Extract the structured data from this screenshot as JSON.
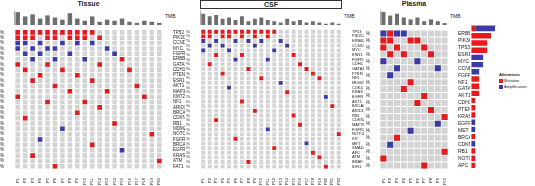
{
  "chart_data": [
    {
      "type": "heatmap",
      "title": "Tissue",
      "categories": [
        "P1",
        "P2",
        "P3",
        "P4",
        "P5",
        "P6",
        "P7",
        "P8",
        "P9",
        "P10",
        "P11",
        "P12",
        "P13",
        "P14",
        "P15",
        "P16",
        "P17",
        "P18",
        "P19",
        "P20"
      ],
      "series": [
        {
          "name": "Mutation",
          "color": "#e41a1c"
        },
        {
          "name": "Amplification",
          "color": "#3b3ba6"
        }
      ],
      "tmb": {
        "type": "bar",
        "label": "TMB",
        "values": [
          12,
          8,
          10,
          6,
          9,
          7,
          5,
          11,
          6,
          4,
          8,
          3,
          5,
          4,
          6,
          3,
          2,
          4,
          3,
          2
        ],
        "ylim": [
          0,
          14
        ],
        "color": "#6e6e6e",
        "tick_labels": false
      },
      "rows": [
        {
          "gene": "TP53",
          "frequency": "55%",
          "Mutation": [
            "P1",
            "P2",
            "P3",
            "P4",
            "P5",
            "P6",
            "P7",
            "P8",
            "P9",
            "P10",
            "P11"
          ]
        },
        {
          "gene": "PIK3CA",
          "frequency": "45%",
          "Mutation": [
            "P1",
            "P2",
            "P3",
            "P5",
            "P6",
            "P8",
            "P9",
            "P10",
            "P12"
          ]
        },
        {
          "gene": "CCND1",
          "frequency": "30%",
          "Amplification": [
            "P1",
            "P2",
            "P4",
            "P7",
            "P9",
            "P11"
          ]
        },
        {
          "gene": "MYC",
          "frequency": "25%",
          "Amplification": [
            "P1",
            "P3",
            "P5",
            "P6",
            "P13"
          ]
        },
        {
          "gene": "FGFR1",
          "frequency": "20%",
          "Amplification": [
            "P2",
            "P4",
            "P8",
            "P14"
          ]
        },
        {
          "gene": "ERBB2",
          "frequency": "20%",
          "Mutation": [
            "P15"
          ],
          "Amplification": [
            "P3",
            "P6",
            "P10"
          ]
        },
        {
          "gene": "GATA3",
          "frequency": "15%",
          "Mutation": [
            "P1",
            "P5",
            "P12"
          ]
        },
        {
          "gene": "CDH1",
          "frequency": "15%",
          "Mutation": [
            "P2",
            "P7",
            "P16"
          ]
        },
        {
          "gene": "PTEN",
          "frequency": "10%",
          "Mutation": [
            "P4",
            "P9"
          ]
        },
        {
          "gene": "ESR1",
          "frequency": "10%",
          "Mutation": [
            "P3",
            "P11"
          ]
        },
        {
          "gene": "AKT1",
          "frequency": "10%",
          "Mutation": [
            "P6",
            "P17"
          ]
        },
        {
          "gene": "MAP3K1",
          "frequency": "10%",
          "Mutation": [
            "P8",
            "P13"
          ]
        },
        {
          "gene": "KMT2C",
          "frequency": "10%",
          "Mutation": [
            "P1",
            "P18"
          ]
        },
        {
          "gene": "NF1",
          "frequency": "10%",
          "Mutation": [
            "P5",
            "P10"
          ]
        },
        {
          "gene": "ARID1A",
          "frequency": "5%",
          "Mutation": [
            "P12"
          ]
        },
        {
          "gene": "BRCA2",
          "frequency": "5%",
          "Mutation": [
            "P9"
          ]
        },
        {
          "gene": "CDKN2A",
          "frequency": "5%",
          "Mutation": [
            "P2"
          ]
        },
        {
          "gene": "RB1",
          "frequency": "5%",
          "Mutation": [
            "P14"
          ]
        },
        {
          "gene": "MDM2",
          "frequency": "5%",
          "Amplification": [
            "P7"
          ]
        },
        {
          "gene": "NOTCH1",
          "frequency": "5%",
          "Mutation": [
            "P19"
          ]
        },
        {
          "gene": "FGFR2",
          "frequency": "5%",
          "Amplification": [
            "P4"
          ]
        },
        {
          "gene": "BRCA1",
          "frequency": "5%",
          "Mutation": [
            "P11"
          ]
        },
        {
          "gene": "EGFR",
          "frequency": "5%",
          "Amplification": [
            "P15"
          ]
        },
        {
          "gene": "KRAS",
          "frequency": "5%",
          "Mutation": [
            "P3"
          ]
        },
        {
          "gene": "ATM",
          "frequency": "5%",
          "Mutation": [
            "P20"
          ]
        },
        {
          "gene": "FAT1",
          "frequency": "5%",
          "Mutation": [
            "P6"
          ]
        }
      ]
    },
    {
      "type": "heatmap",
      "title": "CSF",
      "categories": [
        "P1",
        "P2",
        "P3",
        "P4",
        "P5",
        "P6",
        "P7",
        "P8",
        "P9",
        "P10",
        "P11",
        "P12",
        "P13",
        "P14",
        "P15",
        "P16",
        "P17",
        "P18",
        "P19",
        "P20",
        "P21",
        "P22"
      ],
      "series": [
        {
          "name": "Mutation",
          "color": "#e41a1c"
        },
        {
          "name": "Amplification",
          "color": "#3b3ba6"
        }
      ],
      "tmb": {
        "type": "bar",
        "label": "TMB",
        "values": [
          9,
          7,
          8,
          5,
          6,
          4,
          7,
          3,
          5,
          6,
          4,
          3,
          2,
          5,
          3,
          4,
          2,
          3,
          2,
          1,
          2,
          1
        ],
        "ylim": [
          0,
          12
        ],
        "color": "#6e6e6e",
        "tick_labels": false
      },
      "rows": [
        {
          "gene": "TP53",
          "frequency": "55%",
          "Mutation": [
            "P1",
            "P2",
            "P3",
            "P4",
            "P5",
            "P6",
            "P7",
            "P8",
            "P9",
            "P10",
            "P11",
            "P12"
          ]
        },
        {
          "gene": "PIK3CA",
          "frequency": "32%",
          "Mutation": [
            "P1",
            "P2",
            "P4",
            "P5",
            "P7",
            "P9",
            "P11"
          ]
        },
        {
          "gene": "ERBB2",
          "frequency": "27%",
          "Amplification": [
            "P1",
            "P3",
            "P6",
            "P8",
            "P10",
            "P13"
          ]
        },
        {
          "gene": "CCND1",
          "frequency": "18%",
          "Amplification": [
            "P2",
            "P4",
            "P9",
            "P14"
          ]
        },
        {
          "gene": "MYC",
          "frequency": "14%",
          "Amplification": [
            "P1",
            "P5",
            "P12"
          ]
        },
        {
          "gene": "ESR1",
          "frequency": "14%",
          "Mutation": [
            "P3",
            "P7",
            "P15"
          ]
        },
        {
          "gene": "FGFR1",
          "frequency": "9%",
          "Amplification": [
            "P6",
            "P11"
          ]
        },
        {
          "gene": "CDH1",
          "frequency": "9%",
          "Mutation": [
            "P2",
            "P16"
          ]
        },
        {
          "gene": "GATA3",
          "frequency": "9%",
          "Mutation": [
            "P8",
            "P17"
          ]
        },
        {
          "gene": "PTEN",
          "frequency": "9%",
          "Mutation": [
            "P4",
            "P18"
          ]
        },
        {
          "gene": "NF1",
          "frequency": "9%",
          "Mutation": [
            "P10",
            "P19"
          ]
        },
        {
          "gene": "MDM2",
          "frequency": "5%",
          "Amplification": [
            "P13"
          ]
        },
        {
          "gene": "CDK4",
          "frequency": "5%",
          "Amplification": [
            "P5"
          ]
        },
        {
          "gene": "KRAS",
          "frequency": "5%",
          "Mutation": [
            "P14"
          ]
        },
        {
          "gene": "EGFR",
          "frequency": "5%",
          "Amplification": [
            "P20"
          ]
        },
        {
          "gene": "AKT1",
          "frequency": "5%",
          "Mutation": [
            "P7"
          ]
        },
        {
          "gene": "BRCA2",
          "frequency": "5%",
          "Mutation": [
            "P21"
          ]
        },
        {
          "gene": "ARID1A",
          "frequency": "5%",
          "Mutation": [
            "P9"
          ]
        },
        {
          "gene": "RB1",
          "frequency": "5%",
          "Mutation": [
            "P15"
          ]
        },
        {
          "gene": "CDKN2A",
          "frequency": "5%",
          "Mutation": [
            "P3"
          ]
        },
        {
          "gene": "MAP2K1",
          "frequency": "5%",
          "Mutation": [
            "P16"
          ]
        },
        {
          "gene": "FGFR2",
          "frequency": "5%",
          "Amplification": [
            "P11"
          ]
        },
        {
          "gene": "NOTCH1",
          "frequency": "5%",
          "Mutation": [
            "P22"
          ]
        },
        {
          "gene": "KIT",
          "frequency": "5%",
          "Mutation": [
            "P6"
          ]
        },
        {
          "gene": "MET",
          "frequency": "5%",
          "Amplification": [
            "P17"
          ]
        },
        {
          "gene": "SMAD4",
          "frequency": "5%",
          "Mutation": [
            "P12"
          ]
        },
        {
          "gene": "APC",
          "frequency": "5%",
          "Mutation": [
            "P18"
          ]
        },
        {
          "gene": "ATM",
          "frequency": "5%",
          "Mutation": [
            "P19"
          ]
        },
        {
          "gene": "BRAF",
          "frequency": "5%",
          "Mutation": [
            "P8"
          ]
        },
        {
          "gene": "IDH1",
          "frequency": "5%",
          "Mutation": [
            "P20"
          ]
        }
      ]
    },
    {
      "type": "heatmap",
      "title": "Plasma",
      "categories": [
        "P1",
        "P2",
        "P3",
        "P4",
        "P5",
        "P6",
        "P7",
        "P8",
        "P9",
        "P10"
      ],
      "series": [
        {
          "name": "Mutation",
          "color": "#e41a1c"
        },
        {
          "name": "Amplification",
          "color": "#3b3ba6"
        }
      ],
      "tmb": {
        "type": "bar",
        "label": "TMB",
        "values": [
          7,
          5,
          6,
          4,
          3,
          4,
          2,
          3,
          2,
          1
        ],
        "ylim": [
          0,
          8
        ],
        "color": "#6e6e6e",
        "tick_labels": false
      },
      "rows": [
        {
          "gene": "ERBB2",
          "frequency": "40%",
          "Mutation": [
            "P2"
          ],
          "Amplification": [
            "P1",
            "P3",
            "P4"
          ]
        },
        {
          "gene": "PIK3CA",
          "frequency": "40%",
          "Mutation": [
            "P1",
            "P2",
            "P5",
            "P6"
          ]
        },
        {
          "gene": "TP53",
          "frequency": "30%",
          "Mutation": [
            "P1",
            "P3",
            "P7"
          ]
        },
        {
          "gene": "ESR1",
          "frequency": "30%",
          "Mutation": [
            "P2",
            "P4",
            "P8"
          ]
        },
        {
          "gene": "MYC",
          "frequency": "20%",
          "Amplification": [
            "P1",
            "P6"
          ]
        },
        {
          "gene": "CCND1",
          "frequency": "20%",
          "Amplification": [
            "P3",
            "P9"
          ]
        },
        {
          "gene": "FGFR1",
          "frequency": "10%",
          "Amplification": [
            "P2"
          ]
        },
        {
          "gene": "NF1",
          "frequency": "10%",
          "Mutation": [
            "P5"
          ]
        },
        {
          "gene": "GATA3",
          "frequency": "10%",
          "Mutation": [
            "P4"
          ]
        },
        {
          "gene": "AKT1",
          "frequency": "10%",
          "Mutation": [
            "P7"
          ]
        },
        {
          "gene": "CDH1",
          "frequency": "10%",
          "Mutation": [
            "P6"
          ]
        },
        {
          "gene": "PTEN",
          "frequency": "10%",
          "Mutation": [
            "P8"
          ]
        },
        {
          "gene": "KRAS",
          "frequency": "10%",
          "Mutation": [
            "P10"
          ]
        },
        {
          "gene": "EGFR",
          "frequency": "10%",
          "Amplification": [
            "P9"
          ]
        },
        {
          "gene": "MET",
          "frequency": "10%",
          "Amplification": [
            "P5"
          ]
        },
        {
          "gene": "BRCA2",
          "frequency": "10%",
          "Mutation": [
            "P3"
          ]
        },
        {
          "gene": "CDK6",
          "frequency": "10%",
          "Amplification": [
            "P2"
          ]
        },
        {
          "gene": "RB1",
          "frequency": "10%",
          "Mutation": [
            "P10"
          ]
        },
        {
          "gene": "NOTCH1",
          "frequency": "10%",
          "Mutation": [
            "P1"
          ]
        },
        {
          "gene": "APC",
          "frequency": "10%",
          "Mutation": [
            "P7"
          ]
        }
      ]
    },
    {
      "type": "bar",
      "orientation": "horizontal",
      "stacked": true,
      "tick_labels": "x",
      "legend": "right",
      "legend_title": "Alterations",
      "categories": [
        "ERBB2",
        "PIK3CA",
        "TP53",
        "ESR1",
        "MYC",
        "CCND1",
        "FGFR1",
        "NF1",
        "GATA3",
        "AKT1",
        "CDH1",
        "PTEN",
        "KRAS",
        "EGFR",
        "MET",
        "BRCA2",
        "CDK6",
        "RB1",
        "NOTCH1",
        "APC"
      ],
      "xlim": [
        0,
        6
      ],
      "xticks": [
        0,
        2,
        4,
        6
      ],
      "series": [
        {
          "name": "Mutation",
          "color": "#e41a1c",
          "values": [
            1,
            5,
            4,
            4,
            0,
            0,
            0,
            2,
            2,
            2,
            1,
            1,
            1,
            0,
            0,
            1,
            0,
            1,
            1,
            1
          ]
        },
        {
          "name": "Amplification",
          "color": "#3b3ba6",
          "values": [
            5,
            0,
            0,
            0,
            3,
            3,
            2,
            0,
            0,
            0,
            0,
            0,
            0,
            1,
            1,
            0,
            1,
            0,
            0,
            0
          ]
        }
      ]
    }
  ]
}
